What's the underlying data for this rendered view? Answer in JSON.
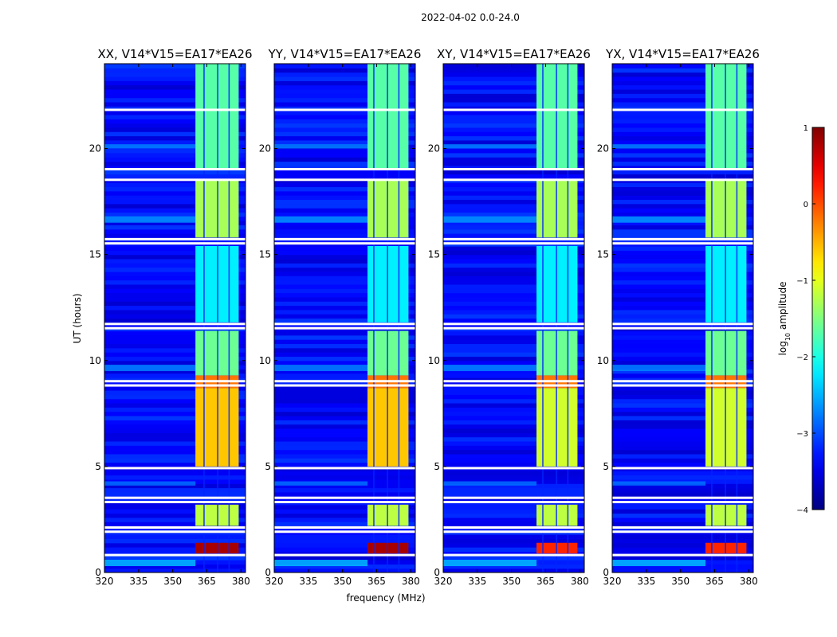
{
  "chart_data": {
    "type": "heatmap",
    "suptitle": "2022-04-02 0.0-24.0",
    "xlabel": "frequency (MHz)",
    "ylabel": "UT (hours)",
    "xlim": [
      320,
      382
    ],
    "ylim": [
      0,
      24
    ],
    "x_ticks": [
      320,
      335,
      350,
      365,
      380
    ],
    "y_ticks": [
      0,
      5,
      10,
      15,
      20
    ],
    "colorbar": {
      "label": "log10 amplitude",
      "label_parts": [
        "log",
        "10",
        " amplitude"
      ],
      "range": [
        -4,
        1
      ],
      "ticks": [
        1,
        0,
        -1,
        -2,
        -3,
        -4
      ],
      "tick_labels": [
        "1",
        "0",
        "−1",
        "−2",
        "−3",
        "−4"
      ],
      "colormap": "jet"
    },
    "panels": [
      {
        "title": "XX, V14*V15=EA17*EA26",
        "rfi_start_mhz": 360,
        "rfi_end_mhz": 379,
        "strong_early": true
      },
      {
        "title": "YY, V14*V15=EA17*EA26",
        "rfi_start_mhz": 361,
        "rfi_end_mhz": 379,
        "strong_early": true
      },
      {
        "title": "XY, V14*V15=EA17*EA26",
        "rfi_start_mhz": 361,
        "rfi_end_mhz": 379,
        "strong_early": false
      },
      {
        "title": "YX, V14*V15=EA17*EA26",
        "rfi_start_mhz": 361,
        "rfi_end_mhz": 379,
        "strong_early": false
      }
    ],
    "flagged_hours": [
      0.8,
      1.9,
      2.1,
      3.3,
      3.5,
      4.9,
      8.8,
      9.0,
      11.5,
      11.7,
      15.5,
      15.7,
      18.5,
      19.0,
      21.8
    ],
    "rfi_segments": [
      {
        "t0": 0.9,
        "t1": 1.4,
        "level": 0.8
      },
      {
        "t0": 2.2,
        "t1": 3.2,
        "level": -1.2
      },
      {
        "t0": 5.0,
        "t1": 8.7,
        "level": -0.6
      },
      {
        "t0": 8.7,
        "t1": 9.3,
        "level": -0.2
      },
      {
        "t0": 9.3,
        "t1": 11.4,
        "level": -1.6
      },
      {
        "t0": 11.8,
        "t1": 15.4,
        "level": -2.2
      },
      {
        "t0": 15.8,
        "t1": 18.5,
        "level": -1.3
      },
      {
        "t0": 19.0,
        "t1": 24.0,
        "level": -1.7
      }
    ]
  }
}
